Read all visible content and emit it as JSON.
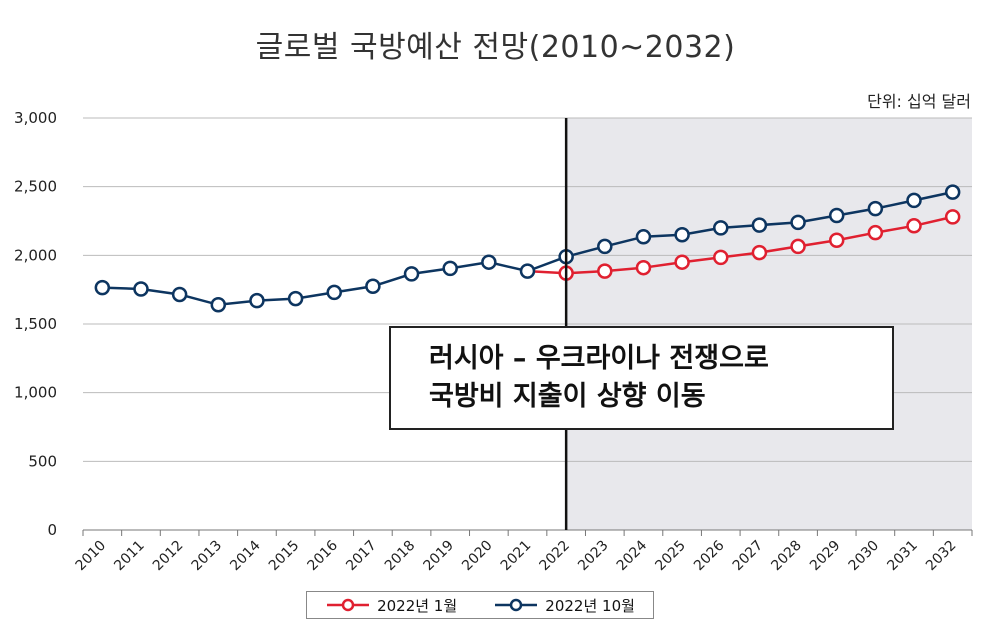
{
  "title": "글로벌 국방예산 전망(2010~2032)",
  "unit_label": "단위: 십억 달러",
  "annotation": {
    "line1": "러시아 – 우크라이나 전쟁으로",
    "line2": "국방비 지출이 상향 이동"
  },
  "colors": {
    "series_jan": "#e02030",
    "series_oct": "#0d3560",
    "shade": "#e8e8ec",
    "grid": "#bbbbbb"
  },
  "chart_data": {
    "type": "line",
    "title": "글로벌 국방예산 전망(2010~2032)",
    "xlabel": "",
    "ylabel": "",
    "ylim": [
      0,
      3000
    ],
    "yticks": [
      "0",
      "500",
      "1,000",
      "1,500",
      "2,000",
      "2,500",
      "3,000"
    ],
    "x": [
      "2010",
      "2011",
      "2012",
      "2013",
      "2014",
      "2015",
      "2016",
      "2017",
      "2018",
      "2019",
      "2020",
      "2021",
      "2022",
      "2023",
      "2024",
      "2025",
      "2026",
      "2027",
      "2028",
      "2029",
      "2030",
      "2031",
      "2032"
    ],
    "divider_x": "2022",
    "legend_position": "bottom",
    "series": [
      {
        "name": "2022년 1월",
        "values": [
          null,
          null,
          null,
          null,
          null,
          null,
          null,
          null,
          null,
          null,
          null,
          1885,
          1870,
          1885,
          1910,
          1950,
          1985,
          2020,
          2065,
          2110,
          2165,
          2215,
          2280
        ]
      },
      {
        "name": "2022년 10월",
        "values": [
          1765,
          1755,
          1715,
          1640,
          1670,
          1685,
          1730,
          1775,
          1865,
          1905,
          1950,
          1885,
          1990,
          2065,
          2135,
          2150,
          2200,
          2220,
          2240,
          2290,
          2340,
          2400,
          2460
        ]
      }
    ]
  }
}
